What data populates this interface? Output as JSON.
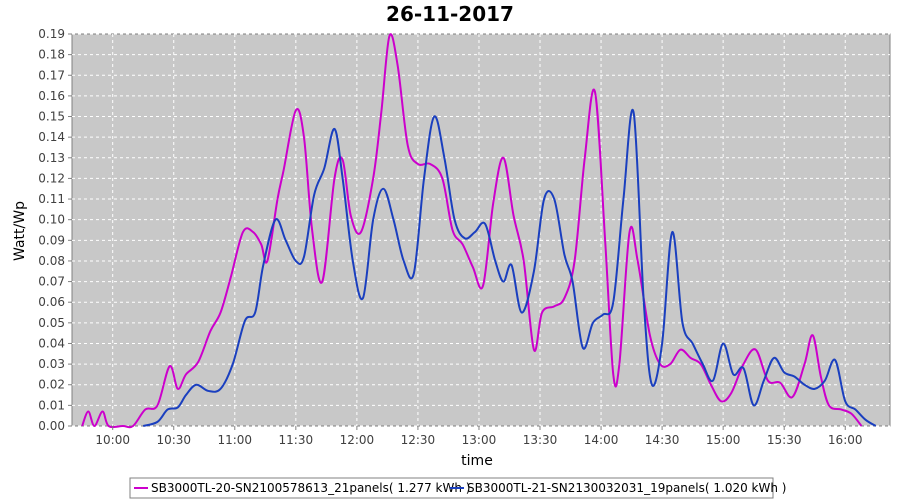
{
  "chart_data": {
    "type": "line",
    "title": "26-11-2017",
    "xlabel": "time",
    "ylabel": "Watt/Wp",
    "x_time_range": [
      "09:40",
      "16:22"
    ],
    "xticks": [
      "10:00",
      "10:30",
      "11:00",
      "11:30",
      "12:00",
      "12:30",
      "13:00",
      "13:30",
      "14:00",
      "14:30",
      "15:00",
      "15:30",
      "16:00"
    ],
    "ylim": [
      0,
      0.19
    ],
    "yticks": [
      "0.00",
      "0.01",
      "0.02",
      "0.03",
      "0.04",
      "0.05",
      "0.06",
      "0.07",
      "0.08",
      "0.09",
      "0.10",
      "0.11",
      "0.12",
      "0.13",
      "0.14",
      "0.15",
      "0.16",
      "0.17",
      "0.18",
      "0.19"
    ],
    "grid": true,
    "legend_position": "bottom",
    "background_color": "#c8c8c8",
    "grid_color": "#ffffff",
    "series": [
      {
        "name": "SB3000TL-20-SN2100578613_21panels( 1.277 kWh )",
        "color": "#cc00cc",
        "points": [
          [
            "09:45",
            0.0
          ],
          [
            "09:48",
            0.007
          ],
          [
            "09:51",
            0.0
          ],
          [
            "09:55",
            0.007
          ],
          [
            "09:58",
            0.0
          ],
          [
            "10:05",
            0.0
          ],
          [
            "10:10",
            0.0
          ],
          [
            "10:16",
            0.008
          ],
          [
            "10:22",
            0.01
          ],
          [
            "10:28",
            0.029
          ],
          [
            "10:32",
            0.018
          ],
          [
            "10:36",
            0.025
          ],
          [
            "10:42",
            0.031
          ],
          [
            "10:48",
            0.046
          ],
          [
            "10:53",
            0.055
          ],
          [
            "10:58",
            0.072
          ],
          [
            "11:04",
            0.094
          ],
          [
            "11:09",
            0.094
          ],
          [
            "11:13",
            0.088
          ],
          [
            "11:16",
            0.08
          ],
          [
            "11:21",
            0.11
          ],
          [
            "11:24",
            0.124
          ],
          [
            "11:30",
            0.153
          ],
          [
            "11:34",
            0.14
          ],
          [
            "11:38",
            0.095
          ],
          [
            "11:43",
            0.07
          ],
          [
            "11:49",
            0.12
          ],
          [
            "11:53",
            0.129
          ],
          [
            "11:57",
            0.102
          ],
          [
            "12:02",
            0.094
          ],
          [
            "12:08",
            0.12
          ],
          [
            "12:12",
            0.152
          ],
          [
            "12:16",
            0.189
          ],
          [
            "12:20",
            0.175
          ],
          [
            "12:25",
            0.136
          ],
          [
            "12:30",
            0.127
          ],
          [
            "12:36",
            0.127
          ],
          [
            "12:42",
            0.12
          ],
          [
            "12:47",
            0.095
          ],
          [
            "12:52",
            0.088
          ],
          [
            "12:57",
            0.077
          ],
          [
            "13:02",
            0.068
          ],
          [
            "13:07",
            0.108
          ],
          [
            "13:12",
            0.13
          ],
          [
            "13:17",
            0.102
          ],
          [
            "13:22",
            0.08
          ],
          [
            "13:27",
            0.037
          ],
          [
            "13:31",
            0.055
          ],
          [
            "13:37",
            0.058
          ],
          [
            "13:42",
            0.062
          ],
          [
            "13:47",
            0.08
          ],
          [
            "13:52",
            0.13
          ],
          [
            "13:57",
            0.162
          ],
          [
            "14:02",
            0.09
          ],
          [
            "14:06",
            0.025
          ],
          [
            "14:09",
            0.03
          ],
          [
            "14:14",
            0.094
          ],
          [
            "14:18",
            0.08
          ],
          [
            "14:24",
            0.044
          ],
          [
            "14:29",
            0.03
          ],
          [
            "14:34",
            0.03
          ],
          [
            "14:39",
            0.037
          ],
          [
            "14:44",
            0.033
          ],
          [
            "14:49",
            0.03
          ],
          [
            "14:54",
            0.02
          ],
          [
            "14:59",
            0.012
          ],
          [
            "15:04",
            0.016
          ],
          [
            "15:10",
            0.03
          ],
          [
            "15:16",
            0.037
          ],
          [
            "15:22",
            0.022
          ],
          [
            "15:28",
            0.021
          ],
          [
            "15:34",
            0.014
          ],
          [
            "15:40",
            0.03
          ],
          [
            "15:44",
            0.044
          ],
          [
            "15:48",
            0.024
          ],
          [
            "15:52",
            0.01
          ],
          [
            "15:58",
            0.008
          ],
          [
            "16:03",
            0.006
          ],
          [
            "16:08",
            0.0
          ]
        ]
      },
      {
        "name": "SB3000TL-21-SN2130032031_19panels( 1.020 kWh )",
        "color": "#1a3fbf",
        "points": [
          [
            "10:15",
            0.0
          ],
          [
            "10:22",
            0.002
          ],
          [
            "10:27",
            0.008
          ],
          [
            "10:32",
            0.009
          ],
          [
            "10:36",
            0.015
          ],
          [
            "10:41",
            0.02
          ],
          [
            "10:47",
            0.017
          ],
          [
            "10:53",
            0.018
          ],
          [
            "10:59",
            0.03
          ],
          [
            "11:05",
            0.051
          ],
          [
            "11:10",
            0.055
          ],
          [
            "11:14",
            0.078
          ],
          [
            "11:20",
            0.1
          ],
          [
            "11:25",
            0.09
          ],
          [
            "11:30",
            0.08
          ],
          [
            "11:34",
            0.082
          ],
          [
            "11:39",
            0.112
          ],
          [
            "11:44",
            0.125
          ],
          [
            "11:49",
            0.144
          ],
          [
            "11:53",
            0.12
          ],
          [
            "11:58",
            0.08
          ],
          [
            "12:03",
            0.062
          ],
          [
            "12:08",
            0.1
          ],
          [
            "12:13",
            0.115
          ],
          [
            "12:18",
            0.1
          ],
          [
            "12:23",
            0.08
          ],
          [
            "12:28",
            0.074
          ],
          [
            "12:33",
            0.12
          ],
          [
            "12:38",
            0.15
          ],
          [
            "12:43",
            0.13
          ],
          [
            "12:48",
            0.1
          ],
          [
            "12:53",
            0.091
          ],
          [
            "12:58",
            0.094
          ],
          [
            "13:03",
            0.098
          ],
          [
            "13:08",
            0.08
          ],
          [
            "13:12",
            0.07
          ],
          [
            "13:16",
            0.078
          ],
          [
            "13:21",
            0.055
          ],
          [
            "13:27",
            0.075
          ],
          [
            "13:32",
            0.11
          ],
          [
            "13:37",
            0.11
          ],
          [
            "13:42",
            0.083
          ],
          [
            "13:46",
            0.07
          ],
          [
            "13:51",
            0.038
          ],
          [
            "13:56",
            0.05
          ],
          [
            "14:01",
            0.054
          ],
          [
            "14:06",
            0.06
          ],
          [
            "14:11",
            0.11
          ],
          [
            "14:16",
            0.152
          ],
          [
            "14:21",
            0.06
          ],
          [
            "14:25",
            0.02
          ],
          [
            "14:30",
            0.04
          ],
          [
            "14:35",
            0.094
          ],
          [
            "14:40",
            0.05
          ],
          [
            "14:45",
            0.04
          ],
          [
            "14:50",
            0.03
          ],
          [
            "14:55",
            0.022
          ],
          [
            "15:00",
            0.04
          ],
          [
            "15:05",
            0.025
          ],
          [
            "15:10",
            0.028
          ],
          [
            "15:15",
            0.01
          ],
          [
            "15:20",
            0.022
          ],
          [
            "15:25",
            0.033
          ],
          [
            "15:30",
            0.026
          ],
          [
            "15:35",
            0.024
          ],
          [
            "15:40",
            0.02
          ],
          [
            "15:45",
            0.018
          ],
          [
            "15:50",
            0.022
          ],
          [
            "15:55",
            0.032
          ],
          [
            "16:00",
            0.012
          ],
          [
            "16:05",
            0.008
          ],
          [
            "16:10",
            0.003
          ],
          [
            "16:15",
            0.0
          ]
        ]
      }
    ]
  }
}
